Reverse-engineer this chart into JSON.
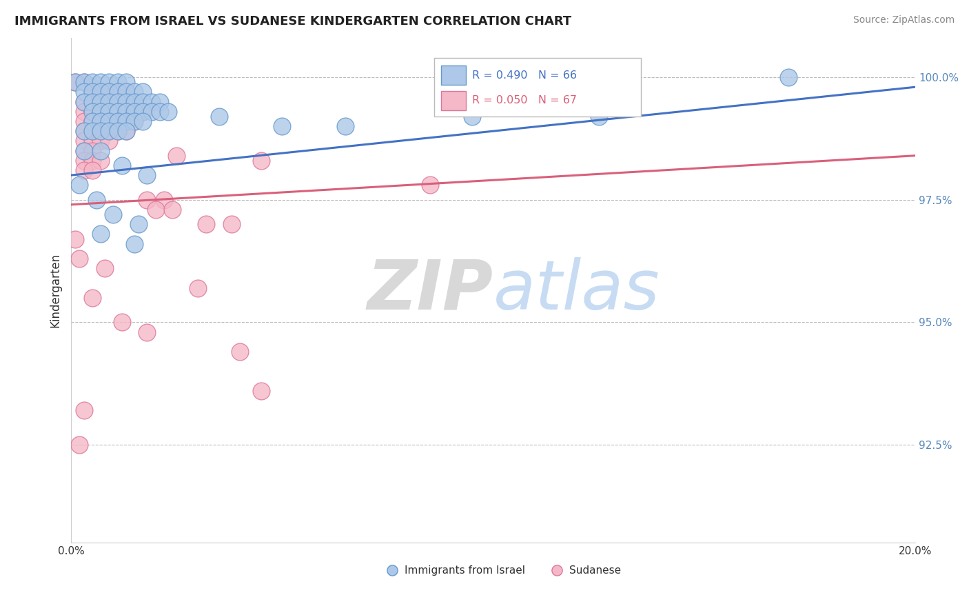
{
  "title": "IMMIGRANTS FROM ISRAEL VS SUDANESE KINDERGARTEN CORRELATION CHART",
  "source": "Source: ZipAtlas.com",
  "ylabel": "Kindergarten",
  "xlim": [
    0.0,
    0.2
  ],
  "ylim": [
    0.905,
    1.008
  ],
  "ytick_vals": [
    0.925,
    0.95,
    0.975,
    1.0
  ],
  "ytick_labels": [
    "92.5%",
    "95.0%",
    "97.5%",
    "100.0%"
  ],
  "legend_label_blue": "Immigrants from Israel",
  "legend_label_pink": "Sudanese",
  "blue_color": "#adc8e8",
  "blue_edge": "#6699cc",
  "pink_color": "#f5b8c8",
  "pink_edge": "#dd7799",
  "trend_blue": "#4472c4",
  "trend_pink": "#d9607a",
  "blue_scatter": [
    [
      0.001,
      0.999
    ],
    [
      0.003,
      0.999
    ],
    [
      0.005,
      0.999
    ],
    [
      0.007,
      0.999
    ],
    [
      0.009,
      0.999
    ],
    [
      0.011,
      0.999
    ],
    [
      0.013,
      0.999
    ],
    [
      0.003,
      0.997
    ],
    [
      0.005,
      0.997
    ],
    [
      0.007,
      0.997
    ],
    [
      0.009,
      0.997
    ],
    [
      0.011,
      0.997
    ],
    [
      0.013,
      0.997
    ],
    [
      0.015,
      0.997
    ],
    [
      0.017,
      0.997
    ],
    [
      0.003,
      0.995
    ],
    [
      0.005,
      0.995
    ],
    [
      0.007,
      0.995
    ],
    [
      0.009,
      0.995
    ],
    [
      0.011,
      0.995
    ],
    [
      0.013,
      0.995
    ],
    [
      0.015,
      0.995
    ],
    [
      0.017,
      0.995
    ],
    [
      0.019,
      0.995
    ],
    [
      0.021,
      0.995
    ],
    [
      0.005,
      0.993
    ],
    [
      0.007,
      0.993
    ],
    [
      0.009,
      0.993
    ],
    [
      0.011,
      0.993
    ],
    [
      0.013,
      0.993
    ],
    [
      0.015,
      0.993
    ],
    [
      0.017,
      0.993
    ],
    [
      0.019,
      0.993
    ],
    [
      0.021,
      0.993
    ],
    [
      0.023,
      0.993
    ],
    [
      0.005,
      0.991
    ],
    [
      0.007,
      0.991
    ],
    [
      0.009,
      0.991
    ],
    [
      0.011,
      0.991
    ],
    [
      0.013,
      0.991
    ],
    [
      0.015,
      0.991
    ],
    [
      0.017,
      0.991
    ],
    [
      0.003,
      0.989
    ],
    [
      0.005,
      0.989
    ],
    [
      0.007,
      0.989
    ],
    [
      0.009,
      0.989
    ],
    [
      0.011,
      0.989
    ],
    [
      0.013,
      0.989
    ],
    [
      0.035,
      0.992
    ],
    [
      0.05,
      0.99
    ],
    [
      0.065,
      0.99
    ],
    [
      0.095,
      0.992
    ],
    [
      0.125,
      0.992
    ],
    [
      0.17,
      1.0
    ],
    [
      0.003,
      0.985
    ],
    [
      0.007,
      0.985
    ],
    [
      0.012,
      0.982
    ],
    [
      0.018,
      0.98
    ],
    [
      0.002,
      0.978
    ],
    [
      0.006,
      0.975
    ],
    [
      0.01,
      0.972
    ],
    [
      0.016,
      0.97
    ],
    [
      0.007,
      0.968
    ],
    [
      0.015,
      0.966
    ]
  ],
  "pink_scatter": [
    [
      0.001,
      0.999
    ],
    [
      0.003,
      0.999
    ],
    [
      0.005,
      0.998
    ],
    [
      0.007,
      0.997
    ],
    [
      0.009,
      0.997
    ],
    [
      0.011,
      0.997
    ],
    [
      0.013,
      0.997
    ],
    [
      0.003,
      0.995
    ],
    [
      0.005,
      0.995
    ],
    [
      0.007,
      0.995
    ],
    [
      0.009,
      0.995
    ],
    [
      0.011,
      0.995
    ],
    [
      0.013,
      0.995
    ],
    [
      0.015,
      0.995
    ],
    [
      0.003,
      0.993
    ],
    [
      0.005,
      0.993
    ],
    [
      0.007,
      0.993
    ],
    [
      0.009,
      0.993
    ],
    [
      0.011,
      0.993
    ],
    [
      0.013,
      0.993
    ],
    [
      0.015,
      0.993
    ],
    [
      0.017,
      0.993
    ],
    [
      0.003,
      0.991
    ],
    [
      0.005,
      0.991
    ],
    [
      0.007,
      0.991
    ],
    [
      0.009,
      0.991
    ],
    [
      0.011,
      0.991
    ],
    [
      0.013,
      0.991
    ],
    [
      0.015,
      0.991
    ],
    [
      0.003,
      0.989
    ],
    [
      0.005,
      0.989
    ],
    [
      0.007,
      0.989
    ],
    [
      0.009,
      0.989
    ],
    [
      0.011,
      0.989
    ],
    [
      0.013,
      0.989
    ],
    [
      0.003,
      0.987
    ],
    [
      0.005,
      0.987
    ],
    [
      0.007,
      0.987
    ],
    [
      0.009,
      0.987
    ],
    [
      0.003,
      0.985
    ],
    [
      0.005,
      0.985
    ],
    [
      0.003,
      0.983
    ],
    [
      0.005,
      0.983
    ],
    [
      0.007,
      0.983
    ],
    [
      0.003,
      0.981
    ],
    [
      0.005,
      0.981
    ],
    [
      0.025,
      0.984
    ],
    [
      0.045,
      0.983
    ],
    [
      0.085,
      0.978
    ],
    [
      0.018,
      0.975
    ],
    [
      0.022,
      0.975
    ],
    [
      0.02,
      0.973
    ],
    [
      0.024,
      0.973
    ],
    [
      0.032,
      0.97
    ],
    [
      0.038,
      0.97
    ],
    [
      0.001,
      0.967
    ],
    [
      0.002,
      0.963
    ],
    [
      0.008,
      0.961
    ],
    [
      0.03,
      0.957
    ],
    [
      0.005,
      0.955
    ],
    [
      0.012,
      0.95
    ],
    [
      0.018,
      0.948
    ],
    [
      0.04,
      0.944
    ],
    [
      0.045,
      0.936
    ],
    [
      0.003,
      0.932
    ],
    [
      0.002,
      0.925
    ]
  ],
  "blue_trend_x": [
    0.0,
    0.2
  ],
  "blue_trend_y": [
    0.98,
    0.998
  ],
  "pink_trend_x": [
    0.0,
    0.2
  ],
  "pink_trend_y": [
    0.974,
    0.984
  ],
  "background_color": "#ffffff",
  "grid_color": "#bbbbbb"
}
